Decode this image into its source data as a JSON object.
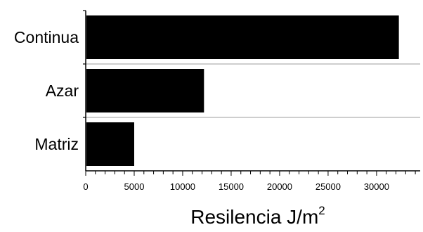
{
  "chart_data": {
    "type": "bar",
    "orientation": "horizontal",
    "categories": [
      "Continua",
      "Azar",
      "Matriz"
    ],
    "values": [
      32300,
      12200,
      5000
    ],
    "bar_color": "#000000",
    "grid_color": "#b0b0b0",
    "xlim": [
      0,
      34500
    ],
    "xticks_major": [
      0,
      5000,
      10000,
      15000,
      20000,
      25000,
      30000
    ],
    "xtick_minor_step": 1000,
    "xlabel": "Resilencia J/m",
    "xlabel_superscript": "2",
    "grid": "horizontal-separators",
    "legend": "none"
  }
}
